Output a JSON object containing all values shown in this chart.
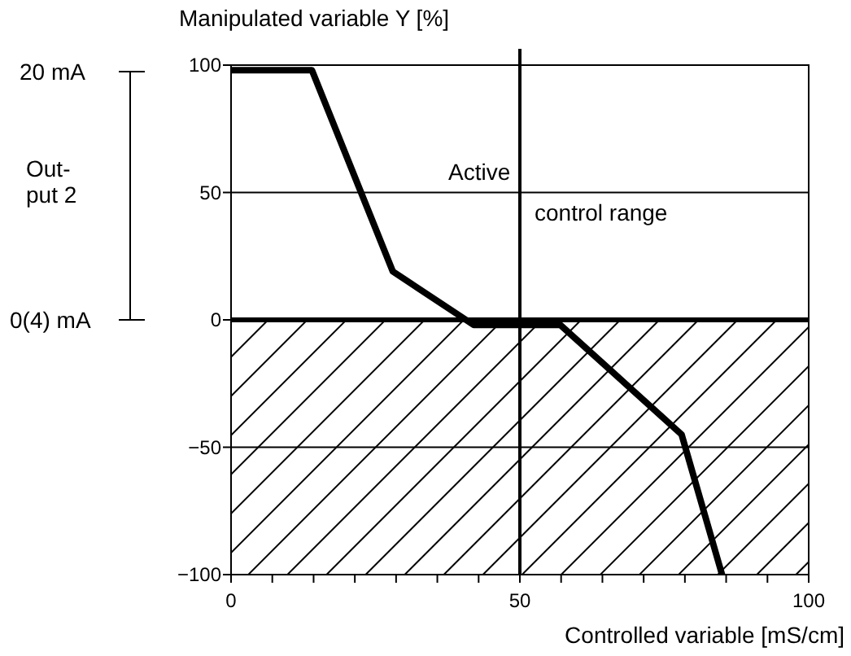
{
  "chart_data": {
    "type": "line",
    "xlabel": "Controlled variable [mS/cm]",
    "ylabel": "Manipulated variable Y [%]",
    "x": [
      0,
      14,
      28,
      42,
      57,
      78,
      85
    ],
    "series": [
      {
        "color": "#000000",
        "values": [
          98,
          98,
          19,
          -2,
          -2,
          -45,
          -100
        ]
      }
    ],
    "xlim": [
      0,
      100
    ],
    "ylim": [
      -100,
      100
    ],
    "xticks": [
      0,
      {
        "value": 7.14,
        "label": null
      },
      {
        "value": 14.29,
        "label": null
      },
      {
        "value": 21.43,
        "label": null
      },
      {
        "value": 28.57,
        "label": null
      },
      {
        "value": 35.71,
        "label": null
      },
      {
        "value": 42.86,
        "label": null
      },
      50,
      {
        "value": 57.14,
        "label": null
      },
      {
        "value": 64.29,
        "label": null
      },
      {
        "value": 71.43,
        "label": null
      },
      {
        "value": 78.57,
        "label": null
      },
      {
        "value": 85.71,
        "label": null
      },
      {
        "value": 92.86,
        "label": null
      },
      100
    ],
    "yticks": [
      -100,
      -50,
      0,
      50,
      100
    ],
    "grid": "y",
    "ref_lines": [
      {
        "axis": "x",
        "value": 50
      },
      {
        "axis": "y",
        "value": 0
      }
    ],
    "bands": [
      {
        "axis": "y",
        "from": -100,
        "to": 0,
        "color": "#000000"
      }
    ],
    "annotations": [
      "20 mA",
      "Out-\nput 2",
      "0(4) mA",
      "Active\ncontrol range"
    ]
  }
}
